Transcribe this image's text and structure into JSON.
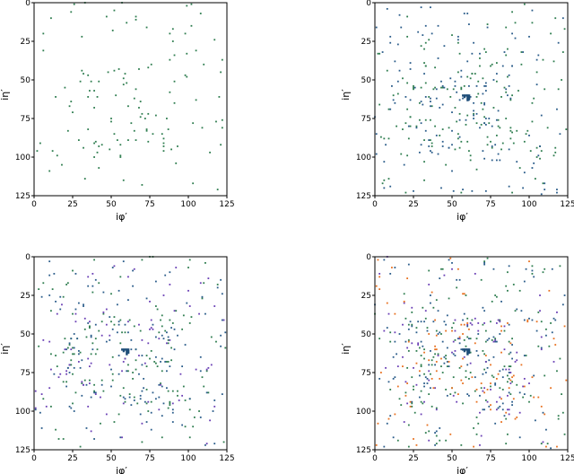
{
  "chart_data": [
    {
      "type": "scatter",
      "xlabel": "iφ′",
      "ylabel": "iη′",
      "xlim": [
        0,
        125
      ],
      "ylim": [
        125,
        0
      ],
      "xticks": [
        "0",
        "25",
        "50",
        "75",
        "100",
        "125"
      ],
      "yticks": [
        "0",
        "25",
        "50",
        "75",
        "100",
        "125"
      ],
      "grid": false,
      "series": [
        {
          "color": "#2e7d4f",
          "count": 130
        }
      ]
    },
    {
      "type": "scatter",
      "xlabel": "iφ′",
      "ylabel": "iη′",
      "xlim": [
        0,
        125
      ],
      "ylim": [
        125,
        0
      ],
      "xticks": [
        "0",
        "25",
        "50",
        "75",
        "100",
        "125"
      ],
      "yticks": [
        "0",
        "25",
        "50",
        "75",
        "100",
        "125"
      ],
      "grid": false,
      "series": [
        {
          "color": "#2e7d4f",
          "count": 180
        },
        {
          "color": "#2a5c8a",
          "count": 170
        }
      ]
    },
    {
      "type": "scatter",
      "xlabel": "iφ′",
      "ylabel": "iη′",
      "xlim": [
        0,
        125
      ],
      "ylim": [
        125,
        0
      ],
      "xticks": [
        "0",
        "25",
        "50",
        "75",
        "100",
        "125"
      ],
      "yticks": [
        "0",
        "25",
        "50",
        "75",
        "100",
        "125"
      ],
      "grid": false,
      "series": [
        {
          "color": "#2e7d4f",
          "count": 160
        },
        {
          "color": "#2a5c8a",
          "count": 150
        },
        {
          "color": "#6a3fb5",
          "count": 90
        }
      ]
    },
    {
      "type": "scatter",
      "xlabel": "iφ′",
      "ylabel": "iη′",
      "xlim": [
        0,
        125
      ],
      "ylim": [
        125,
        0
      ],
      "xticks": [
        "0",
        "25",
        "50",
        "75",
        "100",
        "125"
      ],
      "yticks": [
        "0",
        "25",
        "50",
        "75",
        "100",
        "125"
      ],
      "grid": false,
      "series": [
        {
          "color": "#2e7d4f",
          "count": 170
        },
        {
          "color": "#2a5c8a",
          "count": 150
        },
        {
          "color": "#6a3fb5",
          "count": 90
        },
        {
          "color": "#e8701f",
          "count": 110
        }
      ]
    }
  ],
  "cluster": {
    "x": 58,
    "y": 60,
    "color": "#1f4e79"
  }
}
